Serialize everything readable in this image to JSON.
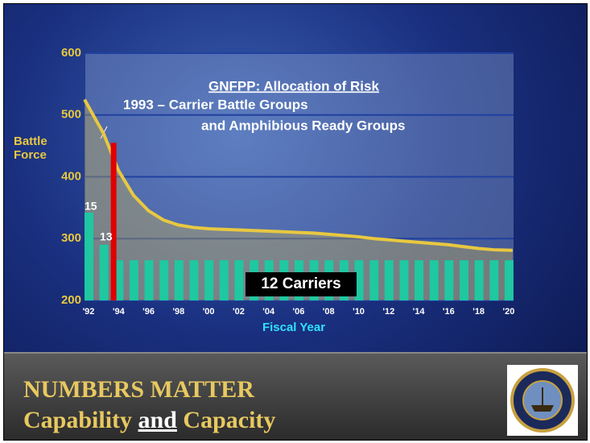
{
  "chart_data": {
    "type": "bar",
    "title": "GNFPP: Allocation of Risk",
    "subtitle": [
      "1993 – Carrier Battle Groups",
      "and Amphibious Ready Groups"
    ],
    "y_label": "Battle Force",
    "x_label": "Fiscal Year",
    "categories": [
      "'92",
      null,
      "'94",
      null,
      "'96",
      null,
      "'98",
      null,
      "'00",
      null,
      "'02",
      null,
      "'04",
      null,
      "'06",
      null,
      "'08",
      null,
      "'10",
      null,
      "'12",
      null,
      "'14",
      null,
      "'16",
      null,
      "'18",
      null,
      "'20"
    ],
    "series": [
      {
        "type": "bar",
        "color": "#1fc8a0",
        "values": [
          342,
          290,
          265,
          265,
          265,
          265,
          265,
          265,
          265,
          265,
          265,
          265,
          265,
          265,
          265,
          265,
          265,
          265,
          265,
          265,
          265,
          265,
          265,
          265,
          265,
          265,
          265,
          265,
          265
        ]
      },
      {
        "type": "bar",
        "color": "#e00000",
        "values": [
          null,
          455,
          null,
          null,
          null,
          null,
          null,
          null,
          null,
          null,
          null,
          null,
          null,
          null,
          null,
          null,
          null,
          null,
          null,
          null,
          null,
          null,
          null,
          null,
          null,
          null,
          null,
          null,
          null
        ]
      },
      {
        "type": "line",
        "color": "#e8c840",
        "values": [
          525,
          470,
          410,
          370,
          345,
          330,
          322,
          318,
          316,
          315,
          314,
          313,
          312,
          311,
          310,
          309,
          307,
          305,
          303,
          300,
          298,
          296,
          294,
          292,
          290,
          287,
          284,
          282,
          281
        ]
      }
    ],
    "annotations": [
      "15",
      "13",
      "12 Carriers"
    ],
    "ylim": [
      200,
      600
    ],
    "yticks": [
      200,
      300,
      400,
      500,
      600
    ],
    "grid": true
  },
  "footer": {
    "title": "NUMBERS MATTER",
    "subtitle": [
      "Capability ",
      "and",
      " Capacity"
    ]
  }
}
